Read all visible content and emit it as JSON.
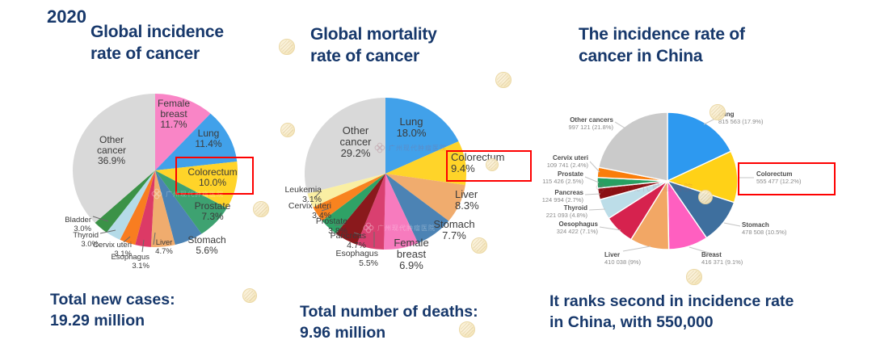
{
  "year_label": "2020",
  "accent_colors": {
    "title_navy": "#17386B",
    "highlight_red": "#FE0000"
  },
  "watermark_text": "广州现代肿瘤医院",
  "chart_data": [
    {
      "type": "pie",
      "id": "global-incidence",
      "title": "Global incidence\nrate of cancer",
      "footer": "Total new cases:\n19.29 million",
      "highlighted_slice": "Colorectum",
      "legend_position": "labels-on-chart",
      "slices": [
        {
          "name": "Female breast",
          "pct": 11.7,
          "color": "#F985C6",
          "label_lines": [
            "Female",
            "breast",
            "11.7%"
          ]
        },
        {
          "name": "Lung",
          "pct": 11.4,
          "color": "#41A1EA",
          "label_lines": [
            "Lung",
            "11.4%"
          ]
        },
        {
          "name": "Colorectum",
          "pct": 10.0,
          "color": "#FFD429",
          "label_lines": [
            "Colorectum",
            "10.0%"
          ]
        },
        {
          "name": "Prostate",
          "pct": 7.3,
          "color": "#3EA271",
          "label_lines": [
            "Prostate",
            "7.3%"
          ]
        },
        {
          "name": "Stomach",
          "pct": 5.6,
          "color": "#4C83B4",
          "label_lines": [
            "Stomach",
            "5.6%"
          ]
        },
        {
          "name": "Liver",
          "pct": 4.7,
          "color": "#F0AC6E",
          "label_lines": [
            "Liver",
            "4.7%"
          ]
        },
        {
          "name": "Esophagus",
          "pct": 3.1,
          "color": "#DC3A66",
          "label_lines": [
            "Esophagus",
            "3.1%"
          ]
        },
        {
          "name": "Cervix uteri",
          "pct": 3.1,
          "color": "#F87D20",
          "label_lines": [
            "Cervix uteri",
            "3.1%"
          ]
        },
        {
          "name": "Thyroid",
          "pct": 3.0,
          "color": "#B5DBE8",
          "label_lines": [
            "Thyroid",
            "3.0%"
          ]
        },
        {
          "name": "Bladder",
          "pct": 3.0,
          "color": "#3B9247",
          "label_lines": [
            "Bladder",
            "3.0%"
          ]
        },
        {
          "name": "Other cancer",
          "pct": 36.9,
          "color": "#D9D9D9",
          "label_lines": [
            "Other",
            "cancer",
            "36.9%"
          ]
        }
      ]
    },
    {
      "type": "pie",
      "id": "global-mortality",
      "title": "Global mortality\nrate of cancer",
      "footer": "Total number of deaths:\n9.96 million",
      "highlighted_slice": "Colorectum",
      "legend_position": "labels-on-chart",
      "slices": [
        {
          "name": "Lung",
          "pct": 18.0,
          "color": "#41A1EA",
          "label_lines": [
            "Lung",
            "18.0%"
          ]
        },
        {
          "name": "Colorectum",
          "pct": 9.4,
          "color": "#FFD429",
          "label_lines": [
            "Colorectum",
            "9.4%"
          ]
        },
        {
          "name": "Liver",
          "pct": 8.3,
          "color": "#F0AC6E",
          "label_lines": [
            "Liver",
            "8.3%"
          ]
        },
        {
          "name": "Stomach",
          "pct": 7.7,
          "color": "#4C83B4",
          "label_lines": [
            "Stomach",
            "7.7%"
          ]
        },
        {
          "name": "Female breast",
          "pct": 6.9,
          "color": "#F77BBE",
          "label_lines": [
            "Female",
            "breast",
            "6.9%"
          ]
        },
        {
          "name": "Esophagus",
          "pct": 5.5,
          "color": "#D94070",
          "label_lines": [
            "Esophagus",
            "5.5%"
          ]
        },
        {
          "name": "Pancreas",
          "pct": 4.7,
          "color": "#8A191C",
          "label_lines": [
            "Pancreas",
            "4.7%"
          ]
        },
        {
          "name": "Prostate",
          "pct": 3.8,
          "color": "#2FA266",
          "label_lines": [
            "Prostate",
            "3.8%"
          ]
        },
        {
          "name": "Cervix uteri",
          "pct": 3.4,
          "color": "#F8831F",
          "label_lines": [
            "Cervix uteri",
            "3.4%"
          ]
        },
        {
          "name": "Leukemia",
          "pct": 3.1,
          "color": "#FAEFA3",
          "label_lines": [
            "Leukemia",
            "3.1%"
          ]
        },
        {
          "name": "Other cancer",
          "pct": 29.2,
          "color": "#D9D9D9",
          "label_lines": [
            "Other",
            "cancer",
            "29.2%"
          ]
        }
      ]
    },
    {
      "type": "pie",
      "id": "china-incidence",
      "title": "The incidence rate of\ncancer in China",
      "footer": "It ranks second in incidence rate\nin China, with 550,000",
      "highlighted_slice": "Colorectum",
      "legend_position": "labels-outside-with-leaders",
      "slices": [
        {
          "name": "Lung",
          "pct": 17.9,
          "cases": "815 563",
          "color": "#2D99F0",
          "label_lines": [
            "Lung",
            "815 563 (17.9%)"
          ]
        },
        {
          "name": "Colorectum",
          "pct": 12.2,
          "cases": "555 477",
          "color": "#FFD117",
          "label_lines": [
            "Colorectum",
            "555 477 (12.2%)"
          ]
        },
        {
          "name": "Stomach",
          "pct": 10.5,
          "cases": "478 508",
          "color": "#3E6F9E",
          "label_lines": [
            "Stomach",
            "478 508 (10.5%)"
          ]
        },
        {
          "name": "Breast",
          "pct": 9.1,
          "cases": "416 371",
          "color": "#FF5FC0",
          "label_lines": [
            "Breast",
            "416 371 (9.1%)"
          ]
        },
        {
          "name": "Liver",
          "pct": 9.0,
          "cases": "410 038",
          "color": "#F2A765",
          "label_lines": [
            "Liver",
            "410 038 (9%)"
          ]
        },
        {
          "name": "Oesophagus",
          "pct": 7.1,
          "cases": "324 422",
          "color": "#D6224E",
          "label_lines": [
            "Oesophagus",
            "324 422 (7.1%)"
          ]
        },
        {
          "name": "Thyroid",
          "pct": 4.8,
          "cases": "221 093",
          "color": "#BCDDE8",
          "label_lines": [
            "Thyroid",
            "221 093 (4.8%)"
          ]
        },
        {
          "name": "Pancreas",
          "pct": 2.7,
          "cases": "124 994",
          "color": "#8B1014",
          "label_lines": [
            "Pancreas",
            "124 994 (2.7%)"
          ]
        },
        {
          "name": "Prostate",
          "pct": 2.5,
          "cases": "115 426",
          "color": "#27A062",
          "label_lines": [
            "Prostate",
            "115 426 (2.5%)"
          ]
        },
        {
          "name": "Cervix uteri",
          "pct": 2.4,
          "cases": "109 741",
          "color": "#FA7D0A",
          "label_lines": [
            "Cervix uteri",
            "109 741 (2.4%)"
          ]
        },
        {
          "name": "Other cancers",
          "pct": 21.8,
          "cases": "997 121",
          "color": "#CACACA",
          "label_lines": [
            "Other cancers",
            "997 121 (21.8%)"
          ]
        }
      ]
    }
  ]
}
